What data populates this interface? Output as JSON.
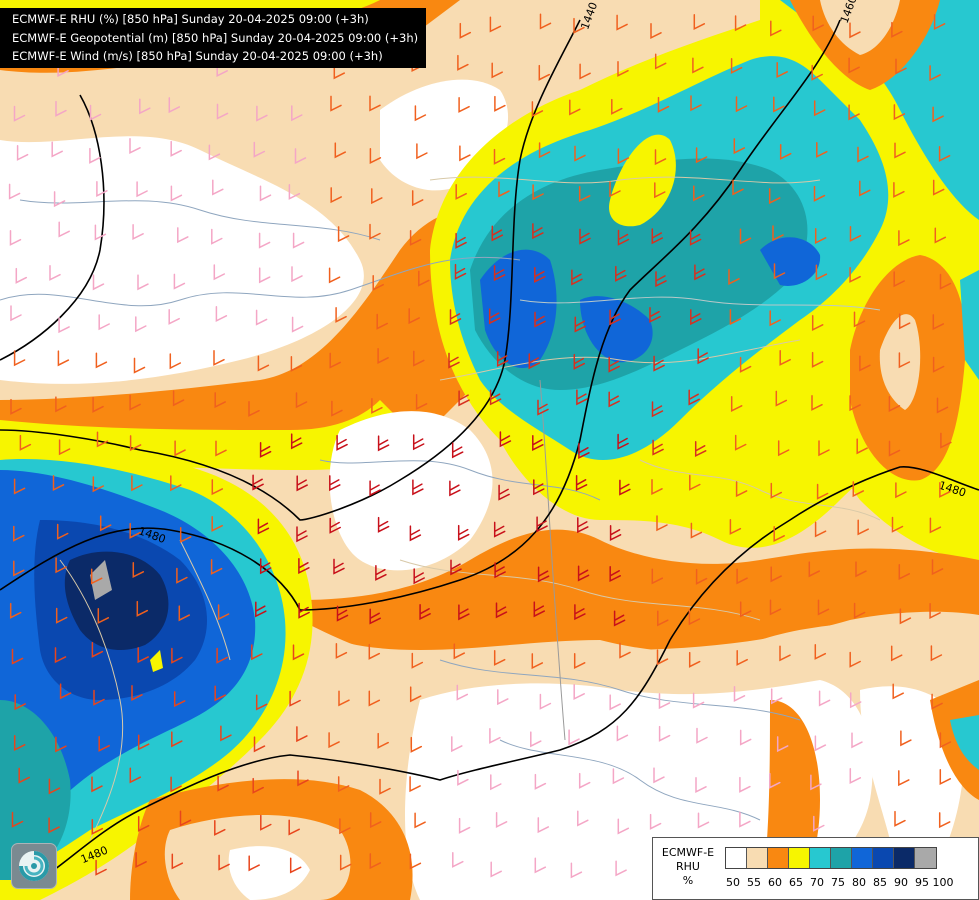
{
  "header": {
    "lines": [
      "ECMWF-E RHU (%) [850 hPa] Sunday 20-04-2025 09:00 (+3h)",
      "ECMWF-E Geopotential (m) [850 hPa] Sunday 20-04-2025 09:00 (+3h)",
      "ECMWF-E Wind (m/s) [850 hPa] Sunday 20-04-2025 09:00 (+3h)"
    ]
  },
  "contour_labels": [
    "1440",
    "1460",
    "1480",
    "1480",
    "1480"
  ],
  "legend": {
    "title_lines": [
      "ECMWF-E",
      "RHU",
      "%"
    ],
    "levels": [
      "50",
      "55",
      "60",
      "65",
      "70",
      "75",
      "80",
      "85",
      "90",
      "95",
      "100"
    ],
    "colors": [
      "#ffffff",
      "#f8dcb2",
      "#f98811",
      "#f7f500",
      "#27c8d0",
      "#1ea3a8",
      "#1066d8",
      "#0a48b0",
      "#0b2a68",
      "#a9a9a9",
      "#616161"
    ]
  },
  "logo": {
    "icon": "ecmwf-swirl-icon"
  }
}
